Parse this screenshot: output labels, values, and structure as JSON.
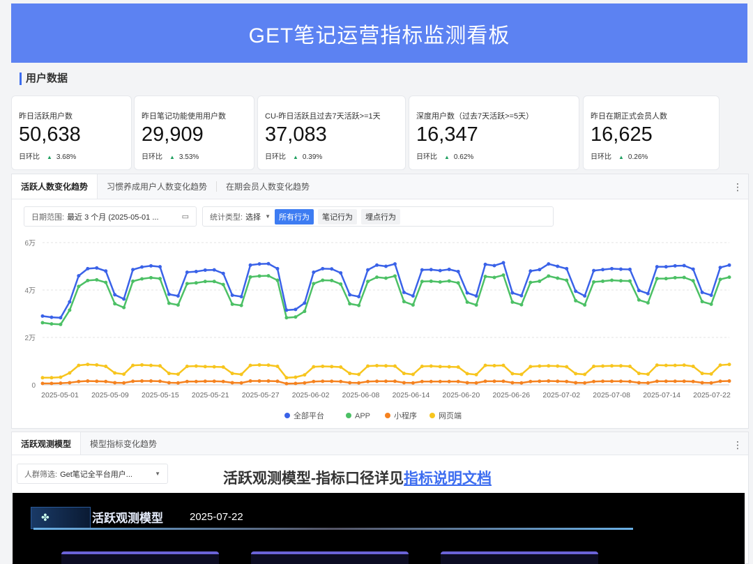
{
  "header": {
    "title": "GET笔记运营指标监测看板"
  },
  "section": {
    "title": "用户数据"
  },
  "kpis": [
    {
      "label": "昨日活跃用户数",
      "value": "50,638",
      "change_label": "日环比",
      "change": "3.68%",
      "trend": "up"
    },
    {
      "label": "昨日笔记功能使用用户数",
      "value": "29,909",
      "change_label": "日环比",
      "change": "3.53%",
      "trend": "up"
    },
    {
      "label": "CU-昨日活跃且过去7天活跃>=1天",
      "value": "37,083",
      "change_label": "日环比",
      "change": "0.39%",
      "trend": "up"
    },
    {
      "label": "深度用户数（过去7天活跃>=5天）",
      "value": "16,347",
      "change_label": "日环比",
      "change": "0.62%",
      "trend": "up"
    },
    {
      "label": "昨日在期正式会员人数",
      "value": "16,625",
      "change_label": "日环比",
      "change": "0.26%",
      "trend": "up"
    }
  ],
  "trend_panel": {
    "tabs": [
      "活跃人数变化趋势",
      "习惯养成用户人数变化趋势",
      "在期会员人数变化趋势"
    ],
    "date_filter": {
      "label": "日期范围:",
      "value": "最近 3 个月 (2025-05-01 ..."
    },
    "stat_type": {
      "label": "统计类型:",
      "value": "选择",
      "options": [
        "所有行为",
        "笔记行为",
        "埋点行为"
      ],
      "selected": "所有行为"
    }
  },
  "chart_data": {
    "type": "line",
    "y_ticks": [
      "0",
      "2万",
      "4万",
      "6万"
    ],
    "ylim": [
      0,
      60000
    ],
    "grid": true,
    "legend_position": "bottom",
    "x_tick_labels": [
      "2025-05-01",
      "2025-05-09",
      "2025-05-15",
      "2025-05-21",
      "2025-05-27",
      "2025-06-02",
      "2025-06-08",
      "2025-06-14",
      "2025-06-20",
      "2025-06-26",
      "2025-07-02",
      "2025-07-08",
      "2025-07-14",
      "2025-07-22"
    ],
    "series": [
      {
        "name": "全部平台",
        "color": "#3a62e8",
        "values": [
          29000,
          28500,
          28300,
          35000,
          46000,
          49000,
          49300,
          48000,
          38000,
          36200,
          48600,
          49700,
          50200,
          49800,
          38200,
          37500,
          47500,
          47800,
          48400,
          48500,
          47000,
          37800,
          37200,
          50500,
          51000,
          51100,
          49000,
          31500,
          31800,
          34500,
          47500,
          49000,
          48900,
          47200,
          38000,
          37200,
          48500,
          50500,
          50000,
          51000,
          39000,
          37500,
          48500,
          48600,
          48200,
          48700,
          47800,
          38800,
          37500,
          50800,
          50300,
          51500,
          38800,
          37600,
          48000,
          48600,
          51000,
          50000,
          49000,
          39500,
          37500,
          48200,
          48600,
          49000,
          48800,
          48700,
          39800,
          38500,
          49800,
          49800,
          50200,
          50300,
          48800,
          39000,
          37800,
          49500,
          50500
        ]
      },
      {
        "name": "APP",
        "color": "#4cc065",
        "values": [
          26200,
          25700,
          25500,
          31500,
          41500,
          44000,
          44300,
          43200,
          34200,
          32600,
          43700,
          44700,
          45200,
          44800,
          34400,
          33700,
          42700,
          43000,
          43600,
          43600,
          42300,
          34000,
          33500,
          45500,
          45900,
          46000,
          44100,
          28300,
          28600,
          31000,
          42700,
          44100,
          44000,
          42500,
          34200,
          33500,
          43600,
          45400,
          45000,
          45900,
          35100,
          33700,
          43600,
          43700,
          43400,
          43800,
          43000,
          34900,
          33700,
          45700,
          45300,
          46300,
          34900,
          33800,
          43200,
          43700,
          45900,
          45000,
          44100,
          35500,
          33700,
          43400,
          43700,
          44100,
          43900,
          43800,
          35800,
          34600,
          44800,
          44800,
          45200,
          45300,
          43900,
          35100,
          34000,
          44500,
          45400
        ]
      },
      {
        "name": "小程序",
        "color": "#f5821f",
        "values": [
          600,
          600,
          700,
          900,
          1400,
          1600,
          1500,
          1400,
          900,
          800,
          1500,
          1600,
          1600,
          1500,
          900,
          800,
          1400,
          1400,
          1500,
          1500,
          1400,
          900,
          800,
          1600,
          1600,
          1600,
          1500,
          500,
          600,
          800,
          1400,
          1500,
          1500,
          1400,
          900,
          800,
          1400,
          1500,
          1500,
          1500,
          900,
          800,
          1400,
          1400,
          1400,
          1400,
          1400,
          900,
          800,
          1500,
          1500,
          1500,
          900,
          800,
          1400,
          1500,
          1600,
          1500,
          1400,
          900,
          800,
          1400,
          1500,
          1500,
          1500,
          1400,
          900,
          800,
          1500,
          1500,
          1500,
          1500,
          1400,
          900,
          800,
          1500,
          1600
        ]
      },
      {
        "name": "网页端",
        "color": "#f7c51e",
        "values": [
          3000,
          3000,
          3200,
          5000,
          8200,
          8600,
          8400,
          7800,
          5000,
          4500,
          8200,
          8400,
          8200,
          8000,
          4800,
          4500,
          7800,
          7900,
          7700,
          7600,
          7500,
          4800,
          4400,
          8200,
          8400,
          8300,
          7800,
          3000,
          3200,
          4200,
          7600,
          7800,
          7700,
          7500,
          4800,
          4400,
          7900,
          8100,
          8000,
          7900,
          4800,
          4400,
          7800,
          7900,
          7700,
          7600,
          7500,
          4700,
          4300,
          8200,
          8100,
          8200,
          4700,
          4400,
          7700,
          7900,
          8000,
          7900,
          7600,
          4700,
          4400,
          7800,
          7900,
          8000,
          8000,
          7800,
          4800,
          4500,
          8300,
          8200,
          8200,
          8300,
          7800,
          4800,
          4600,
          8300,
          8600
        ]
      }
    ]
  },
  "model_panel": {
    "tabs": [
      "活跃观测模型",
      "模型指标变化趋势"
    ],
    "crowd_filter": {
      "label": "人群筛选:",
      "value": "Get笔记全平台用户..."
    },
    "heading": "活跃观测模型-指标口径详见",
    "doc_link": "指标说明文档",
    "dashboard_title": "活跃观测模型",
    "dashboard_date": "2025-07-22"
  }
}
